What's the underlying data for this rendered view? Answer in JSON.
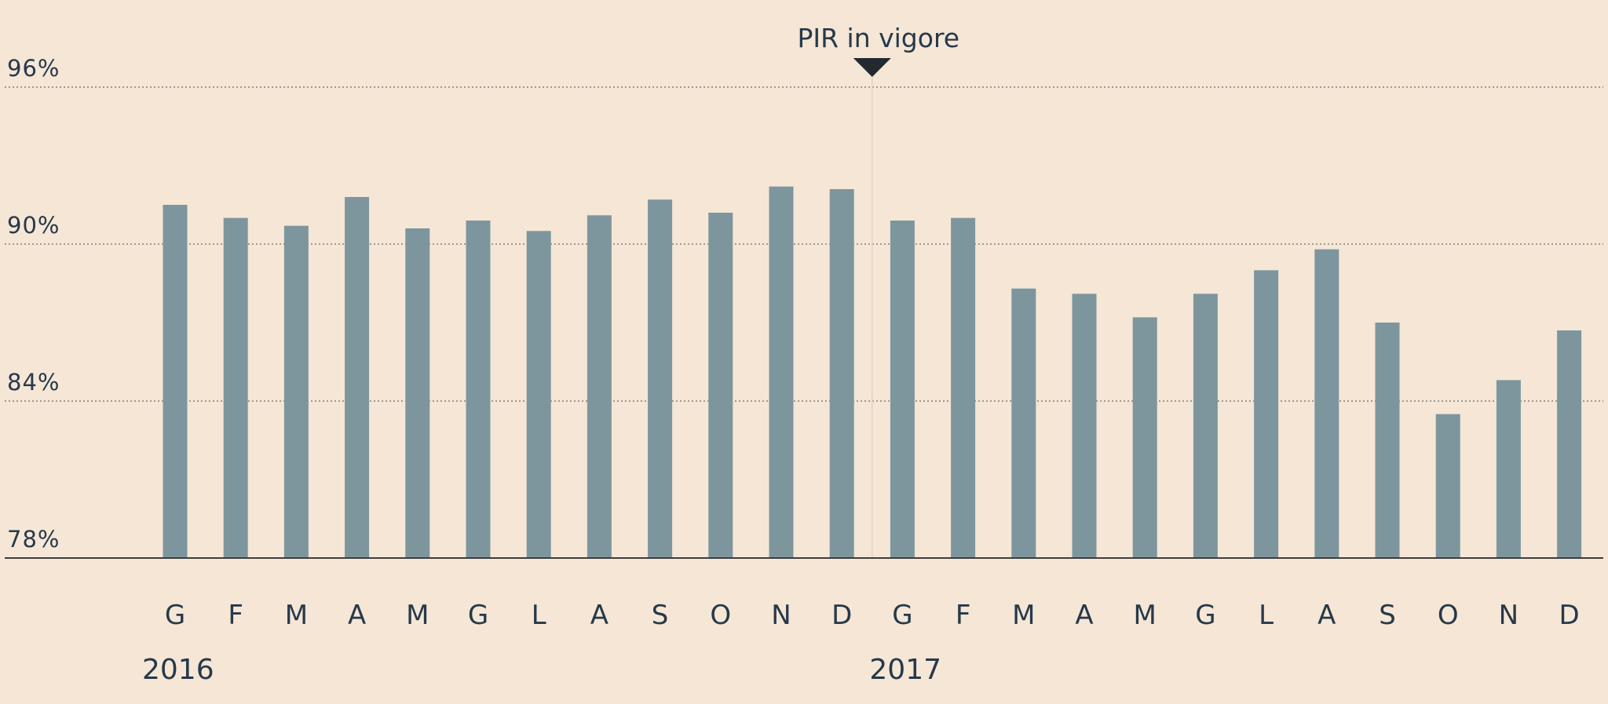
{
  "chart_data": {
    "type": "bar",
    "title": "",
    "xlabel": "",
    "ylabel": "",
    "ylim": [
      78,
      96
    ],
    "yticks": [
      78,
      84,
      90,
      96
    ],
    "ytick_labels": [
      "78%",
      "84%",
      "90%",
      "96%"
    ],
    "grid": true,
    "categories": [
      "G",
      "F",
      "M",
      "A",
      "M",
      "G",
      "L",
      "A",
      "S",
      "O",
      "N",
      "D",
      "G",
      "F",
      "M",
      "A",
      "M",
      "G",
      "L",
      "A",
      "S",
      "O",
      "N",
      "D"
    ],
    "values": [
      91.5,
      91.0,
      90.7,
      91.8,
      90.6,
      90.9,
      90.5,
      91.1,
      91.7,
      91.2,
      92.2,
      92.1,
      90.9,
      91.0,
      88.3,
      88.1,
      87.2,
      88.1,
      89.0,
      89.8,
      87.0,
      83.5,
      84.8,
      86.7
    ],
    "year_labels": [
      {
        "label": "2016",
        "start_index": 0
      },
      {
        "label": "2017",
        "start_index": 12
      }
    ],
    "annotation": {
      "label": "PIR in vigore",
      "between_index": 11
    }
  },
  "colors": {
    "background": "#f5e6d6",
    "bar": "#7d969d",
    "text": "#26394a",
    "marker": "#222a30"
  }
}
